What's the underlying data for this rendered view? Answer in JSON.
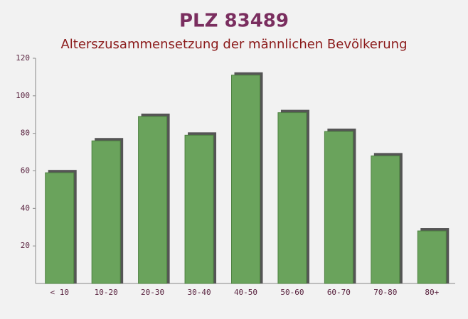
{
  "chart_data": {
    "type": "bar",
    "title": "PLZ 83489",
    "subtitle": "Alterszusammensetzung der männlichen Bevölkerung",
    "categories": [
      "< 10",
      "10-20",
      "20-30",
      "30-40",
      "40-50",
      "50-60",
      "60-70",
      "70-80",
      "80+"
    ],
    "values": [
      59,
      76,
      89,
      79,
      111,
      91,
      81,
      68,
      28
    ],
    "color": "#6aa35c",
    "ylim": [
      0,
      120
    ],
    "yticks": [
      20,
      40,
      60,
      80,
      100,
      120
    ],
    "grid": false
  }
}
